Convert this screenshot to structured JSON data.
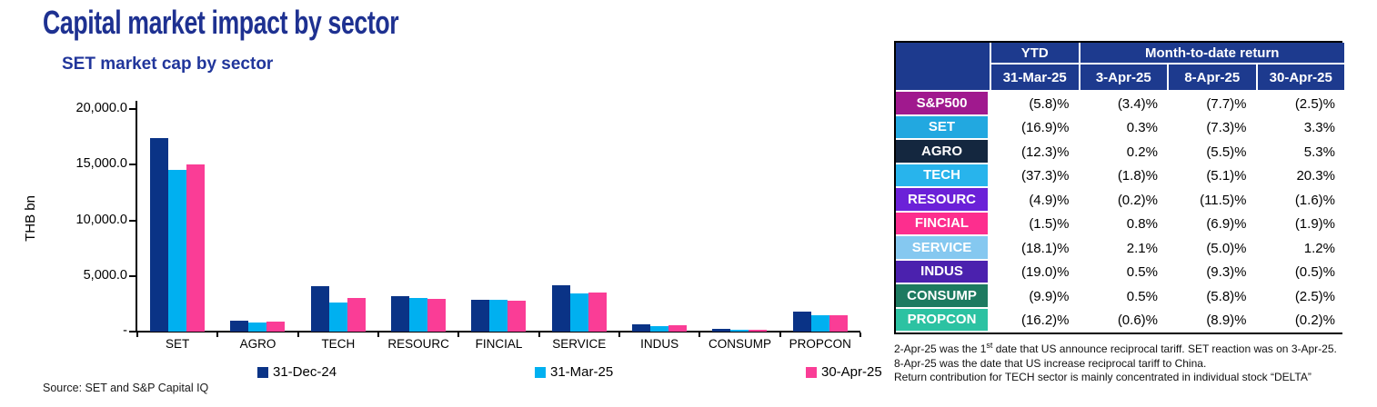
{
  "header": {
    "title": "Capital market impact by sector"
  },
  "chart": {
    "title": "SET market cap by sector",
    "ylabel": "THB bn",
    "source": "Source: SET and S&P Capital IQ"
  },
  "chart_data": {
    "type": "bar",
    "title": "SET market cap by sector",
    "ylabel": "THB bn",
    "ylim": [
      0,
      20000
    ],
    "grid": false,
    "legend_position": "bottom",
    "yticks": [
      {
        "value": 20000,
        "label": "20,000.0"
      },
      {
        "value": 15000,
        "label": "15,000.0"
      },
      {
        "value": 10000,
        "label": "10,000.0"
      },
      {
        "value": 5000,
        "label": "5,000.0"
      },
      {
        "value": 0,
        "label": "-"
      }
    ],
    "categories": [
      "SET",
      "AGRO",
      "TECH",
      "RESOURC",
      "FINCIAL",
      "SERVICE",
      "INDUS",
      "CONSUMP",
      "PROPCON"
    ],
    "series": [
      {
        "name": "31-Dec-24",
        "color": "#0a3386",
        "values": [
          17400,
          1000,
          4050,
          3150,
          2900,
          4200,
          650,
          250,
          1800
        ]
      },
      {
        "name": "31-Mar-25",
        "color": "#00b0f0",
        "values": [
          14550,
          800,
          2600,
          3050,
          2850,
          3450,
          500,
          150,
          1450
        ]
      },
      {
        "name": "30-Apr-25",
        "color": "#fa3d96",
        "values": [
          15000,
          900,
          3000,
          2950,
          2800,
          3550,
          550,
          200,
          1500
        ]
      }
    ]
  },
  "table": {
    "header_row1": {
      "ytd": "YTD",
      "mtd": "Month-to-date return"
    },
    "header_row2": [
      "31-Mar-25",
      "3-Apr-25",
      "8-Apr-25",
      "30-Apr-25"
    ],
    "rows": [
      {
        "label": "S&P500",
        "color": "#a0198e",
        "values": [
          "(5.8)%",
          "(3.4)%",
          "(7.7)%",
          "(2.5)%"
        ]
      },
      {
        "label": "SET",
        "color": "#22a8e0",
        "values": [
          "(16.9)%",
          "0.3%",
          "(7.3)%",
          "3.3%"
        ]
      },
      {
        "label": "AGRO",
        "color": "#14273f",
        "values": [
          "(12.3)%",
          "0.2%",
          "(5.5)%",
          "5.3%"
        ]
      },
      {
        "label": "TECH",
        "color": "#28b4ec",
        "values": [
          "(37.3)%",
          "(1.8)%",
          "(5.1)%",
          "20.3%"
        ]
      },
      {
        "label": "RESOURC",
        "color": "#6b21d8",
        "values": [
          "(4.9)%",
          "(0.2)%",
          "(11.5)%",
          "(1.6)%"
        ]
      },
      {
        "label": "FINCIAL",
        "color": "#fd2e8e",
        "values": [
          "(1.5)%",
          "0.8%",
          "(6.9)%",
          "(1.9)%"
        ]
      },
      {
        "label": "SERVICE",
        "color": "#85c8f0",
        "values": [
          "(18.1)%",
          "2.1%",
          "(5.0)%",
          "1.2%"
        ]
      },
      {
        "label": "INDUS",
        "color": "#4b21ae",
        "values": [
          "(19.0)%",
          "0.5%",
          "(9.3)%",
          "(0.5)%"
        ]
      },
      {
        "label": "CONSUMP",
        "color": "#1d7a60",
        "values": [
          "(9.9)%",
          "0.5%",
          "(5.8)%",
          "(2.5)%"
        ]
      },
      {
        "label": "PROPCON",
        "color": "#2cc2a2",
        "values": [
          "(16.2)%",
          "(0.6)%",
          "(8.9)%",
          "(0.2)%"
        ]
      }
    ]
  },
  "footnotes": {
    "line1_pre": "2-Apr-25 was the 1",
    "line1_sup": "st",
    "line1_post": " date that US announce reciprocal tariff. SET reaction was on 3-Apr-25.",
    "line2": "8-Apr-25 was the date that US increase reciprocal tariff to China.",
    "line3": "Return contribution for TECH sector is mainly concentrated in individual stock “DELTA”"
  }
}
